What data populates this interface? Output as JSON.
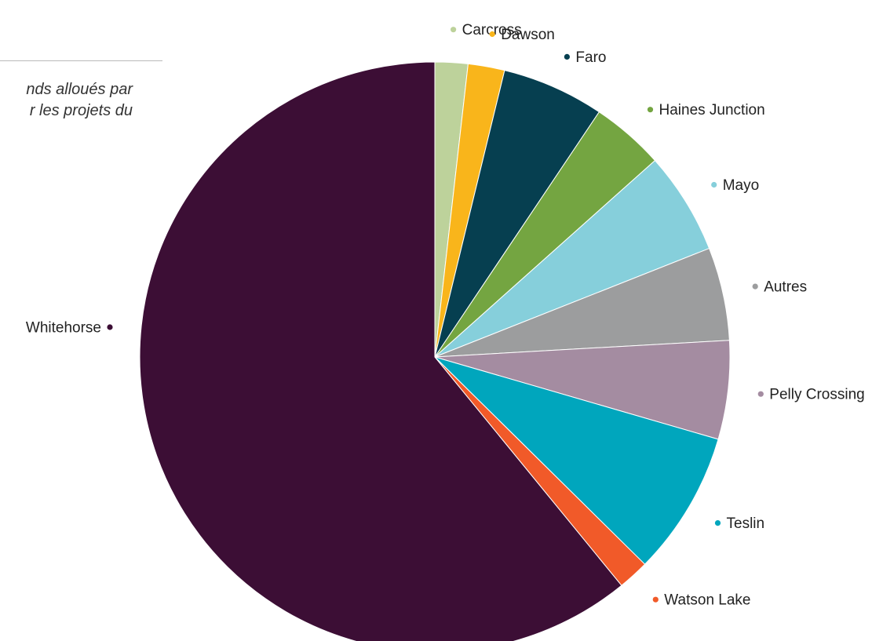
{
  "caption": {
    "line1": "nds alloués par",
    "line2": "r les projets du"
  },
  "chart_data": {
    "type": "pie",
    "start_angle_deg": 0,
    "direction": "clockwise",
    "slices": [
      {
        "label": "Carcross",
        "value": 1.8,
        "color": "#bdd29b"
      },
      {
        "label": "Dawson",
        "value": 2.0,
        "color": "#f9b51b"
      },
      {
        "label": "Faro",
        "value": 5.6,
        "color": "#063f50"
      },
      {
        "label": "Haines Junction",
        "value": 4.0,
        "color": "#74a541"
      },
      {
        "label": "Mayo",
        "value": 5.6,
        "color": "#86cfdb"
      },
      {
        "label": "Autres",
        "value": 5.1,
        "color": "#9c9d9e"
      },
      {
        "label": "Pelly Crossing",
        "value": 5.4,
        "color": "#a48ca1"
      },
      {
        "label": "Teslin",
        "value": 7.9,
        "color": "#00a6bd"
      },
      {
        "label": "Watson Lake",
        "value": 1.7,
        "color": "#f15a29"
      },
      {
        "label": "Whitehorse",
        "value": 60.9,
        "color": "#3c0e35"
      }
    ]
  }
}
